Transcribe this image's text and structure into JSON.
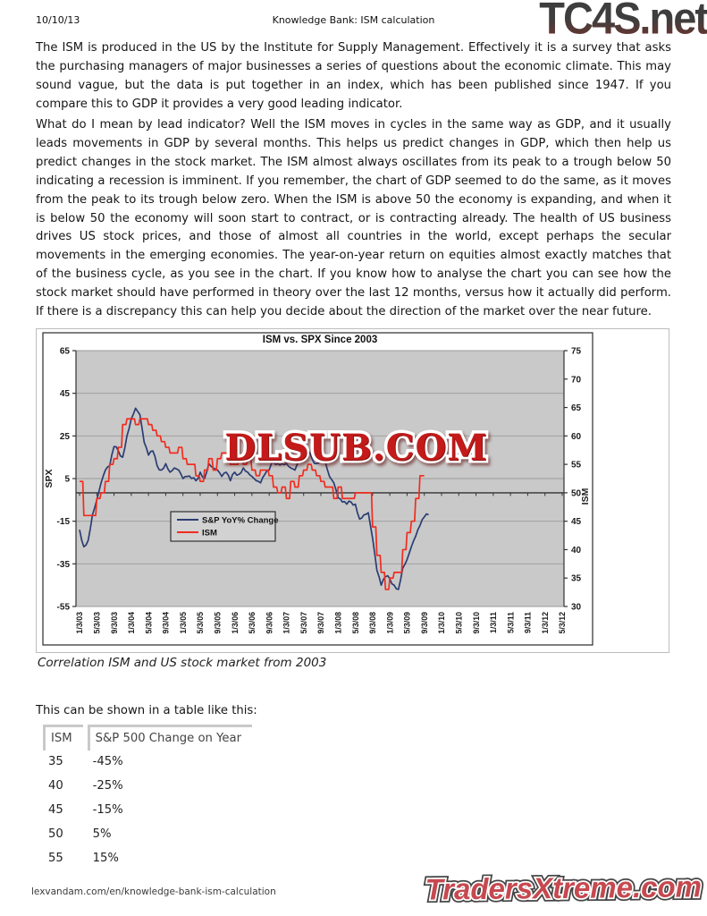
{
  "header": {
    "date": "10/10/13",
    "title": "Knowledge Bank: ISM calculation",
    "logo": "TC4S.net"
  },
  "paragraphs": {
    "p1": "The ISM is produced in the US by the Institute for Supply Management. Effectively it is a survey that asks the purchasing managers of major businesses a series of questions about the economic climate. This may sound vague, but the data is put together in an index, which has been published since 1947. If you compare this to GDP it provides a very good leading indicator.",
    "p2": "What do I mean by lead indicator? Well the ISM moves in cycles in the same way as GDP, and it usually leads movements in GDP by several months. This helps us predict changes in GDP, which then help us predict changes in the stock market. The ISM almost always oscillates from its peak to a trough below 50 indicating a recession is imminent. If you remember, the chart of GDP seemed to do the same, as it moves from the peak to its trough below zero. When the ISM is above 50 the economy is expanding, and when it is below 50 the economy will soon start to contract, or is contracting already. The health of US business drives US stock prices, and those of almost all countries in the world, except perhaps the secular movements in the emerging economies. The year-on-year return on equities almost exactly matches that of the business cycle, as you see in the chart. If you know how to analyse the chart you can see how the stock market should have performed in theory over the last 12 months, versus how it actually did perform. If there is a discrepancy this can help you decide about the direction of the market over the near future."
  },
  "chart_data": {
    "type": "line",
    "title": "ISM vs. SPX Since 2003",
    "watermark": "DLSUB.COM",
    "left_axis": {
      "label": "SPX",
      "ticks": [
        65,
        45,
        25,
        5,
        -15,
        -35,
        -55
      ],
      "range": [
        -55,
        65
      ]
    },
    "right_axis": {
      "label": "ISM",
      "ticks": [
        75,
        70,
        65,
        60,
        55,
        50,
        45,
        40,
        35,
        30
      ],
      "range": [
        30,
        75
      ]
    },
    "reference_line_ism": 50,
    "grid": true,
    "plot_bg": "#c9c9c9",
    "legend_position": "inside-lower-left",
    "x_tick_labels": [
      "1/3/03",
      "5/3/03",
      "9/3/03",
      "1/3/04",
      "5/3/04",
      "9/3/04",
      "1/3/05",
      "5/3/05",
      "9/3/05",
      "1/3/06",
      "5/3/06",
      "9/3/06",
      "1/3/07",
      "5/3/07",
      "9/3/07",
      "1/3/08",
      "5/3/08",
      "9/3/08",
      "1/3/09",
      "5/3/09",
      "9/3/09",
      "1/3/10",
      "5/3/10",
      "9/3/10",
      "1/3/11",
      "5/3/11",
      "9/3/11",
      "1/3/12",
      "5/3/12"
    ],
    "series": [
      {
        "name": "S&P YoY% Change",
        "axis": "left",
        "color": "#2b3d73",
        "style": "line",
        "start": "Jan 2003 (monthly)",
        "values": [
          -19,
          -27,
          -24,
          -12,
          -5,
          3,
          9,
          11,
          20,
          18,
          15,
          25,
          33,
          38,
          35,
          22,
          16,
          18,
          11,
          9,
          12,
          8,
          10,
          9,
          5,
          6,
          5,
          4,
          8,
          5,
          12,
          10,
          9,
          6,
          8,
          4,
          8,
          7,
          10,
          8,
          6,
          4,
          3,
          7,
          9,
          13,
          12,
          12,
          12,
          10,
          9,
          14,
          24,
          18,
          14,
          12,
          14,
          13,
          6,
          3,
          -4,
          -6,
          -7,
          -6,
          -7,
          -14,
          -12,
          -11,
          -23,
          -38,
          -45,
          -41,
          -42,
          -45,
          -47,
          -37,
          -33,
          -27,
          -22,
          -17,
          -13,
          -12
        ]
      },
      {
        "name": "ISM",
        "axis": "right",
        "color": "#f22c1e",
        "style": "step",
        "start": "Jan 2003 (monthly)",
        "values": [
          52,
          46,
          46,
          46,
          49,
          50,
          52,
          55,
          56,
          58,
          62,
          63,
          63,
          62,
          63,
          63,
          62,
          61,
          60,
          59,
          58,
          57,
          57,
          58,
          56,
          55,
          55,
          53,
          52,
          54,
          56,
          54,
          56,
          57,
          57,
          55,
          55,
          56,
          55,
          56,
          54,
          53,
          54,
          54,
          53,
          51,
          50,
          51,
          49,
          52,
          51,
          53,
          54,
          55,
          54,
          53,
          52,
          51,
          51,
          49,
          51,
          49,
          49,
          49,
          50,
          50,
          50,
          50,
          44,
          39,
          36,
          33,
          35,
          36,
          36,
          40,
          43,
          45,
          49,
          53,
          53
        ]
      }
    ]
  },
  "caption": "Correlation ISM and US stock market from 2003",
  "table_intro": "This can be shown in a table like this:",
  "table": {
    "headers": [
      "ISM",
      "S&P 500 Change on Year"
    ],
    "rows": [
      [
        "35",
        "-45%"
      ],
      [
        "40",
        "-25%"
      ],
      [
        "45",
        "-15%"
      ],
      [
        "50",
        "5%"
      ],
      [
        "55",
        "15%"
      ]
    ]
  },
  "footer": {
    "url": "lexvandam.com/en/knowledge-bank-ism-calculation",
    "logo": "TradersXtreme.com"
  },
  "colors": {
    "spx_line": "#2b3d73",
    "ism_line": "#f22c1e",
    "plot_background": "#c9c9c9",
    "watermark_red": "#c41a1a",
    "tradersxtreme_red": "#c7484f"
  }
}
